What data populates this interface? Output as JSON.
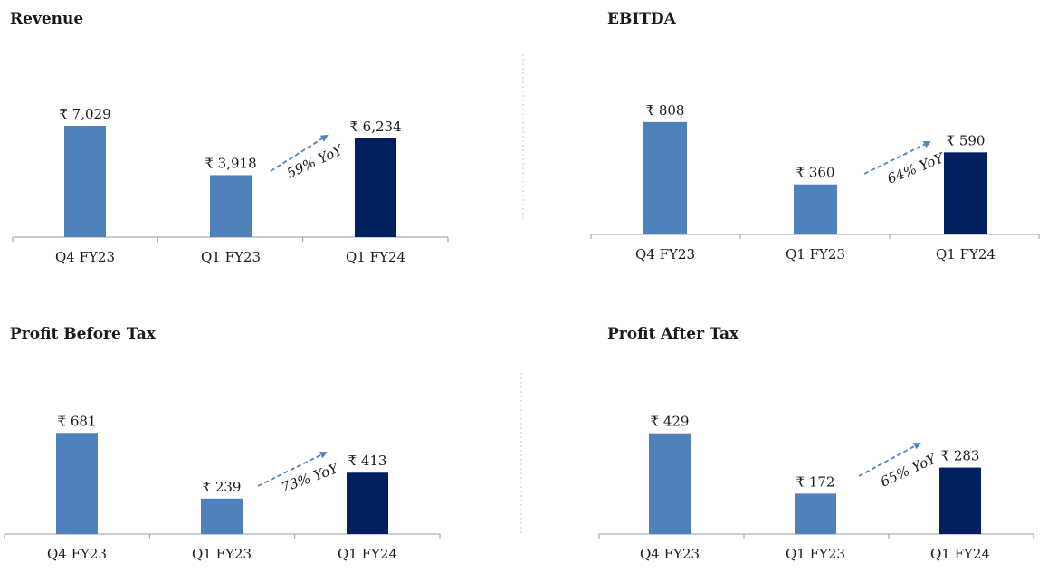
{
  "colors": {
    "bar_prior": "#4F81BD",
    "bar_current": "#002060",
    "axis": "#9A9A9A",
    "arrow": "#4F81BD",
    "divider": "#C8C8C8",
    "text": "#1A1A1A"
  },
  "chart_data": [
    {
      "type": "bar",
      "title": "Revenue",
      "categories": [
        "Q4 FY23",
        "Q1 FY23",
        "Q1 FY24"
      ],
      "values": [
        7029,
        3918,
        6234
      ],
      "data_labels": [
        "₹ 7,029",
        "₹ 3,918",
        "₹ 6,234"
      ],
      "growth_annotation": "59% YoY",
      "xlabel": "",
      "ylabel": "",
      "ylim": [
        0,
        7600
      ],
      "grid": false,
      "legend": "none"
    },
    {
      "type": "bar",
      "title": "EBITDA",
      "categories": [
        "Q4 FY23",
        "Q1 FY23",
        "Q1 FY24"
      ],
      "values": [
        808,
        360,
        590
      ],
      "data_labels": [
        "₹ 808",
        "₹ 360",
        "₹ 590"
      ],
      "growth_annotation": "64% YoY",
      "xlabel": "",
      "ylabel": "",
      "ylim": [
        0,
        820
      ],
      "grid": false,
      "legend": "none"
    },
    {
      "type": "bar",
      "title": "Profit  Before Tax",
      "categories": [
        "Q4 FY23",
        "Q1 FY23",
        "Q1 FY24"
      ],
      "values": [
        681,
        239,
        413
      ],
      "data_labels": [
        "₹ 681",
        "₹ 239",
        "₹ 413"
      ],
      "growth_annotation": "73% YoY",
      "xlabel": "",
      "ylabel": "",
      "ylim": [
        0,
        707
      ],
      "grid": false,
      "legend": "none"
    },
    {
      "type": "bar",
      "title": "Profit  After Tax",
      "categories": [
        "Q4 FY23",
        "Q1 FY23",
        "Q1 FY24"
      ],
      "values": [
        429,
        172,
        283
      ],
      "data_labels": [
        "₹ 429",
        "₹ 172",
        "₹ 283"
      ],
      "growth_annotation": "65% YoY",
      "xlabel": "",
      "ylabel": "",
      "ylim": [
        0,
        451
      ],
      "grid": false,
      "legend": "none"
    }
  ]
}
